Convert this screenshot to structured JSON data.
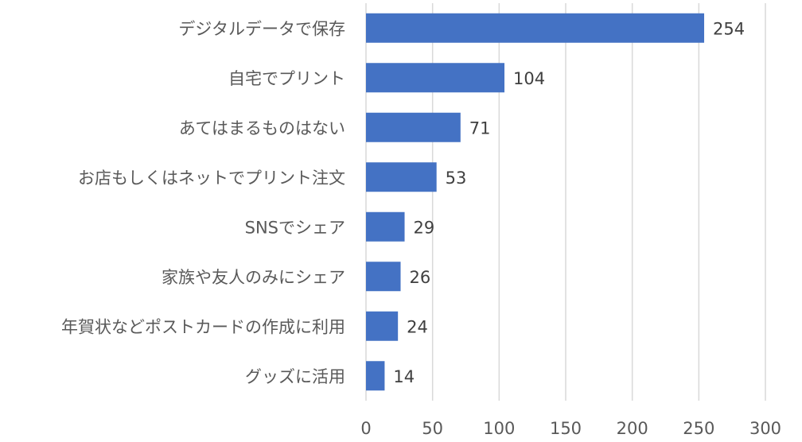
{
  "chart_data": {
    "type": "bar",
    "orientation": "horizontal",
    "categories": [
      "デジタルデータで保存",
      "自宅でプリント",
      "あてはまるものはない",
      "お店もしくはネットでプリント注文",
      "SNSでシェア",
      "家族や友人のみにシェア",
      "年賀状などポストカードの作成に利用",
      "グッズに活用"
    ],
    "values": [
      254,
      104,
      71,
      53,
      29,
      26,
      24,
      14
    ],
    "xlim": [
      0,
      300
    ],
    "xticks": [
      0,
      50,
      100,
      150,
      200,
      250,
      300
    ],
    "grid": true,
    "data_labels": true,
    "bar_color": "#4472c4",
    "grid_color": "#d9d9d9",
    "title": "",
    "xlabel": "",
    "ylabel": ""
  }
}
